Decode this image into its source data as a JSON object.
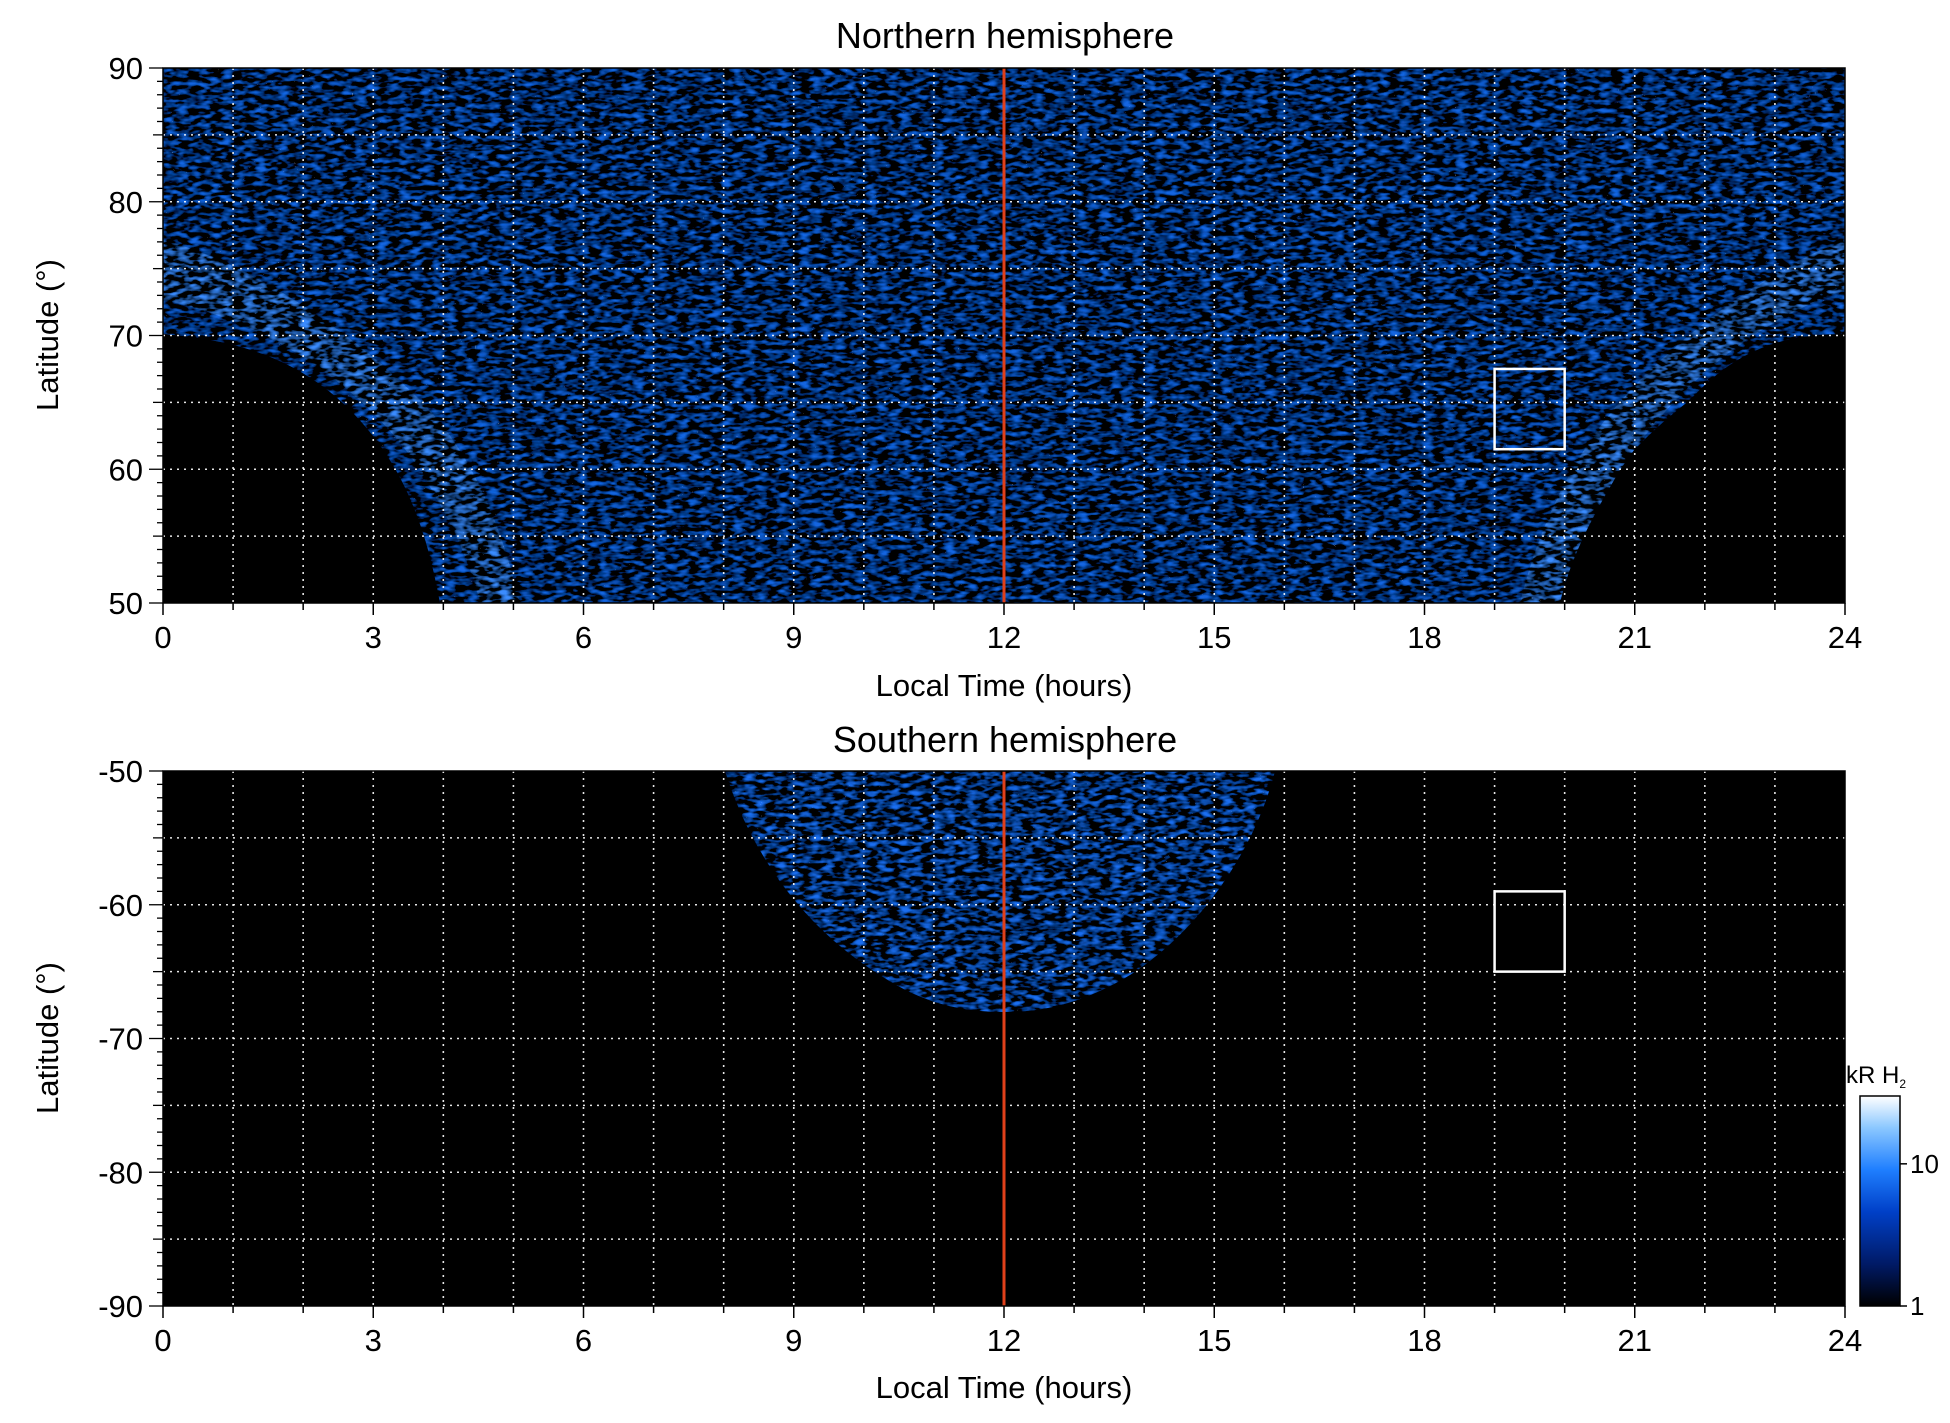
{
  "chart_data": [
    {
      "type": "heatmap",
      "title": "Northern hemisphere",
      "xlabel": "Local Time (hours)",
      "ylabel": "Latitude (°)",
      "xlim": [
        0,
        24
      ],
      "ylim": [
        50,
        90
      ],
      "x_ticks": [
        0,
        3,
        6,
        9,
        12,
        15,
        18,
        21,
        24
      ],
      "y_ticks": [
        50,
        60,
        70,
        80,
        90
      ],
      "grid": "dotted, every 1 hour and every 5 degrees",
      "coverage": "observed emission over latitudes 50-90 between about 4 and 20 h local time; poleward of about 70 at all local times",
      "noon_line_local_time": 12,
      "noon_line_color": "#e0401a",
      "highlight_box": {
        "local_time": [
          19,
          20
        ],
        "latitude": [
          61.5,
          67.5
        ]
      }
    },
    {
      "type": "heatmap",
      "title": "Southern hemisphere",
      "xlabel": "Local Time (hours)",
      "ylabel": "Latitude (°)",
      "xlim": [
        0,
        24
      ],
      "ylim": [
        -90,
        -50
      ],
      "x_ticks": [
        0,
        3,
        6,
        9,
        12,
        15,
        18,
        21,
        24
      ],
      "y_ticks": [
        -50,
        -60,
        -70,
        -80,
        -90
      ],
      "grid": "dotted, every 1 hour and every 5 degrees",
      "coverage": "observed emission only between about 8 and 16 h local time, latitudes -50 to -68",
      "noon_line_local_time": 12,
      "noon_line_color": "#e0401a",
      "highlight_box": {
        "local_time": [
          19,
          20
        ],
        "latitude": [
          -65,
          -59
        ]
      }
    }
  ],
  "colorbar": {
    "label_main": "kR H",
    "label_subscript": "2",
    "scale": "log",
    "range": [
      1,
      30
    ],
    "tick_labels": [
      "10",
      "1"
    ],
    "tick_values": [
      10,
      1
    ],
    "colors": [
      "#000000",
      "#001a66",
      "#0040c8",
      "#1f7fff",
      "#8cc8ff",
      "#ffffff"
    ]
  }
}
